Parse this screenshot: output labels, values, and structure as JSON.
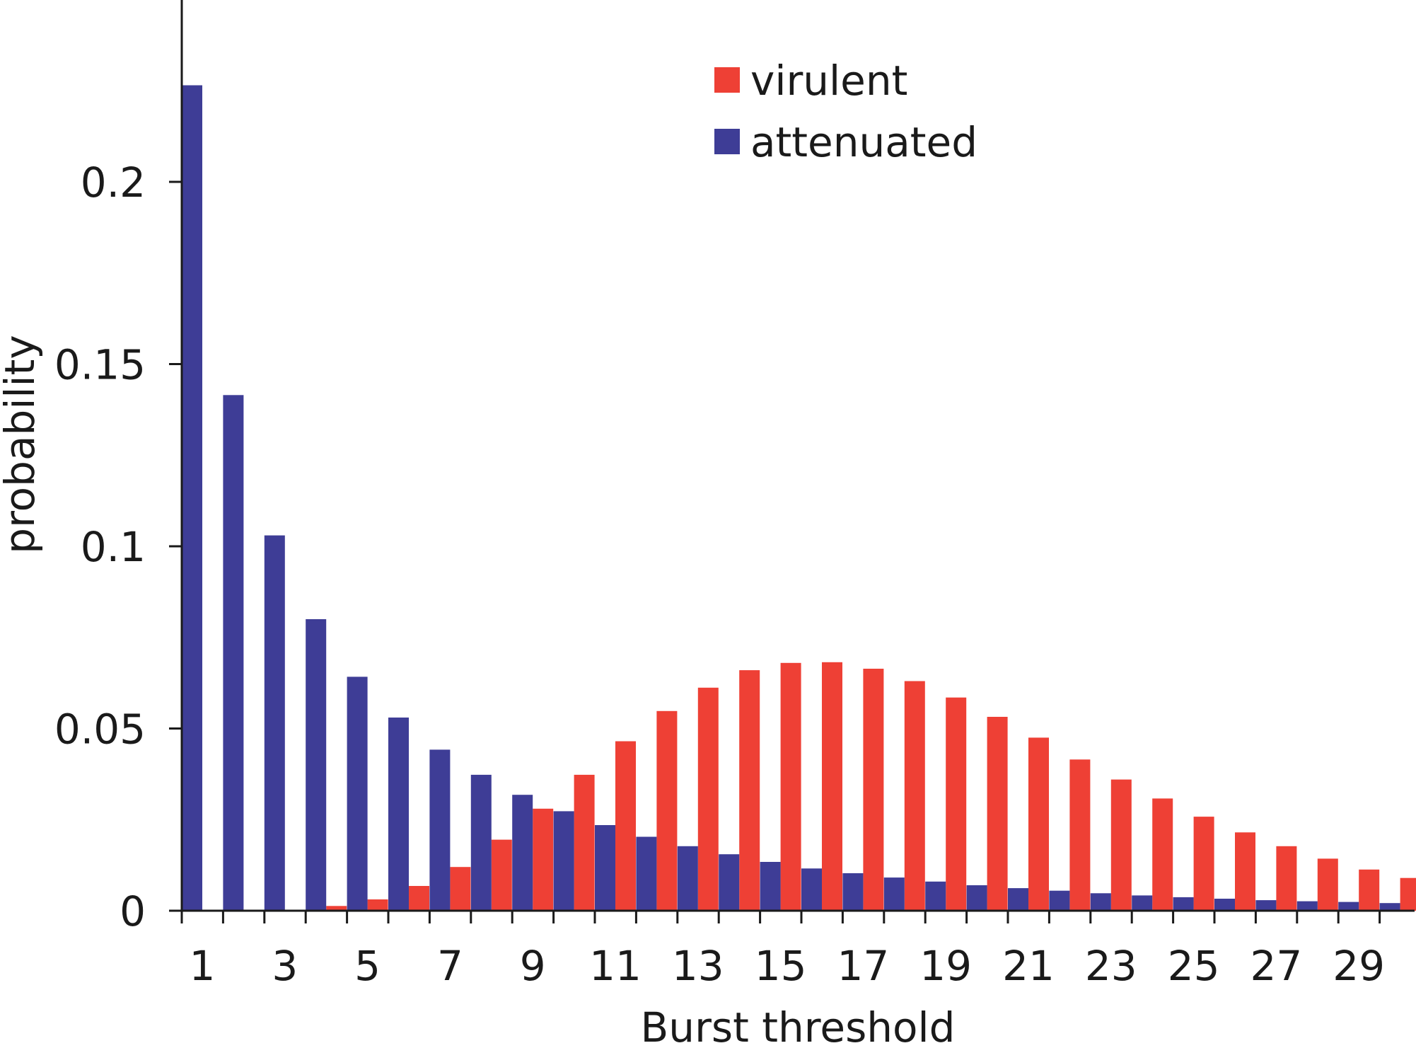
{
  "chart_data": {
    "type": "bar",
    "title": "",
    "xlabel": "Burst threshold",
    "ylabel": "probability",
    "x": [
      1,
      2,
      3,
      4,
      5,
      6,
      7,
      8,
      9,
      10,
      11,
      12,
      13,
      14,
      15,
      16,
      17,
      18,
      19,
      20,
      21,
      22,
      23,
      24,
      25,
      26,
      27,
      28,
      29,
      30
    ],
    "x_tick_labels": [
      "1",
      "3",
      "5",
      "7",
      "9",
      "11",
      "13",
      "15",
      "17",
      "19",
      "21",
      "23",
      "25",
      "27",
      "29"
    ],
    "x_tick_values": [
      1,
      3,
      5,
      7,
      9,
      11,
      13,
      15,
      17,
      19,
      21,
      23,
      25,
      27,
      29
    ],
    "y_tick_labels": [
      "0",
      "0.05",
      "0.1",
      "0.15",
      "0.2"
    ],
    "y_tick_values": [
      0,
      0.05,
      0.1,
      0.15,
      0.2
    ],
    "ylim": [
      0,
      0.25
    ],
    "xlim": [
      0.5,
      30.5
    ],
    "grid": false,
    "legend_position": "top-center",
    "series": [
      {
        "name": "virulent",
        "color": "#ee4035",
        "values": [
          0.0,
          0.0,
          0.0003,
          0.0013,
          0.0031,
          0.0068,
          0.012,
          0.0195,
          0.028,
          0.0373,
          0.0465,
          0.0548,
          0.0612,
          0.066,
          0.068,
          0.0682,
          0.0664,
          0.063,
          0.0585,
          0.0532,
          0.0475,
          0.0415,
          0.036,
          0.0308,
          0.0258,
          0.0215,
          0.0177,
          0.0143,
          0.0113,
          0.009
        ]
      },
      {
        "name": "attenuated",
        "color": "#3e3d96",
        "values": [
          0.2265,
          0.1415,
          0.103,
          0.08,
          0.0642,
          0.053,
          0.0442,
          0.0373,
          0.0318,
          0.0273,
          0.0235,
          0.0203,
          0.0177,
          0.0155,
          0.0134,
          0.0116,
          0.0103,
          0.0091,
          0.008,
          0.007,
          0.0062,
          0.0055,
          0.0048,
          0.0042,
          0.0037,
          0.0033,
          0.0029,
          0.0026,
          0.0024,
          0.0021
        ]
      }
    ]
  }
}
